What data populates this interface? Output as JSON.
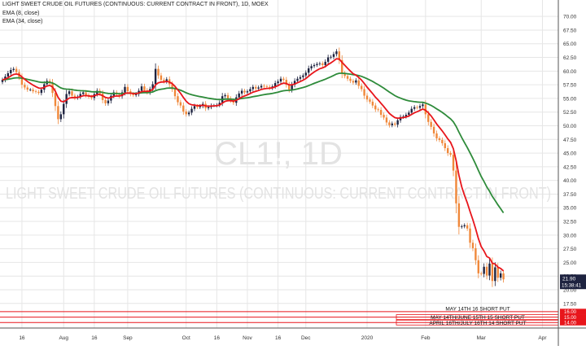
{
  "header": {
    "title": "LIGHT SWEET CRUDE OIL FUTURES (CONTINUOUS: CURRENT CONTRACT IN FRONT), 1D, MOEX",
    "indicators": [
      "EMA (8, close)",
      "EMA (34, close)"
    ]
  },
  "watermark": {
    "symbol": "CL1!, 1D",
    "name": "LIGHT SWEET CRUDE OIL FUTURES (CONTINUOUS: CURRENT CONTRACT IN FRONT)"
  },
  "colors": {
    "up_candle": "#1e2340",
    "down_candle": "#f0883a",
    "ema_fast": "#e8151b",
    "ema_slow": "#2e8b3a",
    "price_label_bg": "#1e2340",
    "annotation_line": "#e8151b",
    "annotation_bg": "#e8151b"
  },
  "price_labels": {
    "last_price": "21.90",
    "countdown": "15:38:41"
  },
  "annotations": [
    {
      "text": "MAY 14TH 16 SHORT PUT",
      "price": 16.0,
      "label": "16.00",
      "highlight": false
    },
    {
      "text": "MAY 14TH/JUNE 15TH 15 SHORT PUT",
      "price": 15.0,
      "label": "15.00",
      "highlight": true
    },
    {
      "text": "APRIL 16TH/JULY 16TH 14 SHORT PUT",
      "price": 14.0,
      "label": "14.00",
      "highlight": true
    }
  ],
  "chart_data": {
    "type": "candlestick",
    "title": "LIGHT SWEET CRUDE OIL FUTURES (CONTINUOUS: CURRENT CONTRACT IN FRONT), 1D, MOEX",
    "ylim": [
      13,
      73
    ],
    "yticks": [
      17.5,
      20,
      22.5,
      25,
      27.5,
      30,
      32.5,
      35,
      37.5,
      40,
      42.5,
      45,
      47.5,
      50,
      52.5,
      55,
      57.5,
      60,
      62.5,
      65,
      67.5,
      70
    ],
    "ytick_labels": [
      "17.50",
      "20.00",
      "22.50",
      "25.00",
      "27.50",
      "30.00",
      "32.50",
      "35.00",
      "37.50",
      "40.00",
      "42.50",
      "45.00",
      "47.50",
      "50.00",
      "52.50",
      "55.00",
      "57.50",
      "60.00",
      "62.50",
      "65.00",
      "67.50",
      "70.00"
    ],
    "xticks": [
      {
        "bar": 7,
        "label": "16"
      },
      {
        "bar": 22,
        "label": "Aug"
      },
      {
        "bar": 33,
        "label": "16"
      },
      {
        "bar": 45,
        "label": "Sep"
      },
      {
        "bar": 66,
        "label": "Oct"
      },
      {
        "bar": 77,
        "label": "16"
      },
      {
        "bar": 88,
        "label": "Nov"
      },
      {
        "bar": 99,
        "label": "16"
      },
      {
        "bar": 109,
        "label": "Dec"
      },
      {
        "bar": 131,
        "label": "2020"
      },
      {
        "bar": 152,
        "label": "Feb"
      },
      {
        "bar": 172,
        "label": "Mar"
      },
      {
        "bar": 194,
        "label": "Apr"
      }
    ],
    "grid": true,
    "series": [
      {
        "name": "EMA (8, close)",
        "kind": "line",
        "source": "ema8"
      },
      {
        "name": "EMA (34, close)",
        "kind": "line",
        "source": "ema34"
      }
    ],
    "close": [
      58.4,
      59.0,
      59.6,
      60.2,
      60.4,
      59.8,
      58.9,
      57.5,
      57.0,
      56.6,
      56.6,
      56.3,
      56.2,
      56.0,
      56.6,
      57.6,
      58.2,
      57.8,
      56.0,
      53.6,
      51.2,
      52.1,
      54.0,
      55.8,
      56.3,
      55.5,
      55.1,
      55.3,
      55.8,
      56.1,
      55.6,
      55.3,
      55.1,
      55.8,
      56.4,
      55.9,
      54.7,
      54.1,
      54.6,
      55.5,
      56.1,
      55.7,
      55.4,
      56.1,
      57.1,
      56.3,
      55.8,
      55.6,
      55.8,
      56.4,
      57.2,
      56.5,
      56.1,
      56.7,
      57.6,
      60.4,
      59.2,
      58.4,
      58.1,
      58.5,
      57.6,
      56.7,
      55.4,
      54.3,
      53.7,
      52.6,
      52.1,
      52.4,
      53.1,
      53.6,
      53.4,
      53.6,
      54.0,
      53.2,
      53.4,
      53.7,
      53.7,
      53.8,
      54.2,
      55.4,
      55.6,
      55.0,
      54.6,
      54.2,
      55.2,
      55.9,
      56.4,
      56.1,
      56.3,
      56.7,
      57.1,
      56.8,
      57.0,
      57.3,
      57.2,
      57.1,
      56.9,
      57.2,
      57.8,
      58.1,
      58.6,
      58.4,
      57.5,
      56.6,
      57.5,
      58.2,
      58.6,
      58.9,
      59.2,
      59.7,
      60.5,
      60.9,
      61.1,
      61.3,
      61.4,
      61.1,
      61.7,
      62.5,
      62.6,
      63.1,
      63.6,
      62.0,
      59.6,
      59.1,
      58.6,
      58.2,
      57.9,
      58.3,
      57.3,
      56.7,
      55.5,
      54.8,
      54.4,
      53.7,
      53.0,
      52.9,
      52.0,
      51.5,
      50.6,
      50.1,
      50.4,
      50.2,
      51.0,
      51.6,
      51.7,
      52.0,
      52.4,
      53.1,
      53.4,
      53.3,
      53.6,
      53.9,
      52.1,
      50.7,
      49.8,
      48.6,
      47.7,
      47.4,
      46.8,
      45.9,
      45.0,
      44.7,
      41.8,
      35.8,
      31.5,
      31.6,
      31.8,
      31.2,
      28.6,
      27.6,
      25.4,
      23.0,
      22.9,
      24.2,
      22.6,
      24.8,
      21.6,
      24.1,
      22.2,
      23.0,
      21.9
    ]
  }
}
